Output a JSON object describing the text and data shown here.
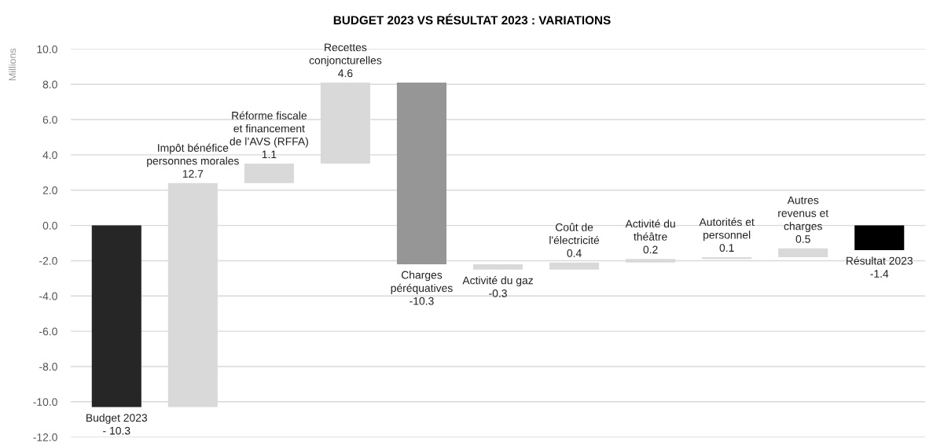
{
  "chart_data": {
    "type": "bar",
    "title": "BUDGET 2023 VS RÉSULTAT 2023 : VARIATIONS",
    "ylabel": "Millions",
    "categories": [
      "Budget 2023",
      "Impôt bénéfice\npersonnes morales",
      "Réforme fiscale\net financement\nde l’AVS (RFFA)",
      "Recettes\nconjoncturelles",
      "Charges\npéréquatives",
      "Activité du gaz",
      "Coût de\nl'électricité",
      "Activité du\nthéâtre",
      "Autorités et\npersonnel",
      "Autres\nrevenus et\ncharges",
      "Résultat 2023"
    ],
    "values": [
      -10.3,
      12.7,
      1.1,
      4.6,
      -10.3,
      -0.3,
      0.4,
      0.2,
      0.1,
      0.5,
      -1.4
    ],
    "base": [
      0,
      -10.3,
      2.4,
      3.5,
      8.1,
      -2.2,
      -2.5,
      -2.1,
      -1.9,
      -1.8,
      0
    ],
    "value_labels": [
      "- 10.3",
      "12.7",
      "1.1",
      "4.6",
      "-10.3",
      "-0.3",
      "0.4",
      "0.2",
      "0.1",
      "0.5",
      "-1.4"
    ],
    "colors": [
      "#262626",
      "#d9d9d9",
      "#d9d9d9",
      "#d9d9d9",
      "#969696",
      "#d9d9d9",
      "#d9d9d9",
      "#d9d9d9",
      "#d9d9d9",
      "#d9d9d9",
      "#000000"
    ],
    "ylim": [
      -12,
      10
    ],
    "yticks": [
      {
        "value": -12,
        "label": "-12.0"
      },
      {
        "value": -10,
        "label": "-10.0"
      },
      {
        "value": -8,
        "label": "-8.0"
      },
      {
        "value": -6,
        "label": "-6.0"
      },
      {
        "value": -4,
        "label": "-4.0"
      },
      {
        "value": -2,
        "label": "-2.0"
      },
      {
        "value": 0,
        "label": "0.0"
      },
      {
        "value": 2,
        "label": "2.0"
      },
      {
        "value": 4,
        "label": "4.0"
      },
      {
        "value": 6,
        "label": "6.0"
      },
      {
        "value": 8,
        "label": "8.0"
      },
      {
        "value": 10,
        "label": "10.0"
      }
    ],
    "grid": "y"
  }
}
